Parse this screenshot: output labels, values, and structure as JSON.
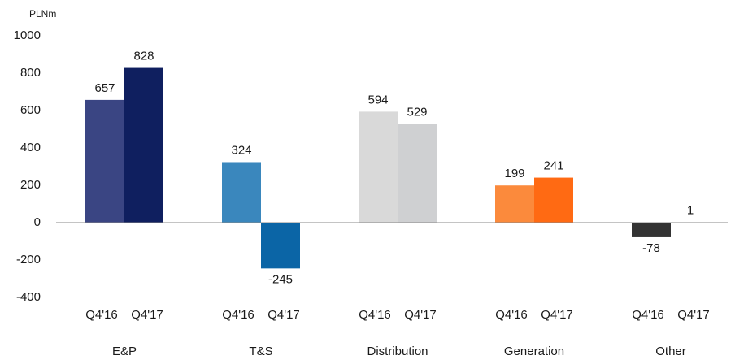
{
  "chart_data": {
    "type": "bar",
    "y_label": "PLNm",
    "categories": [
      "E&P",
      "T&S",
      "Distribution",
      "Generation",
      "Other"
    ],
    "series": [
      {
        "name": "Q4'16",
        "colors": [
          "#3a4583",
          "#3a87bd",
          "#d9d9d9",
          "#fb8a3c",
          "#333333"
        ],
        "values": [
          657,
          324,
          594,
          199,
          -78
        ]
      },
      {
        "name": "Q4'17",
        "colors": [
          "#0f1f5f",
          "#0b65a6",
          "#cfd0d2",
          "#ff6a13",
          "#333333"
        ],
        "values": [
          828,
          -245,
          529,
          241,
          1
        ]
      }
    ],
    "ylim": [
      -400,
      1000
    ],
    "yticks": [
      -400,
      -200,
      0,
      200,
      400,
      600,
      800,
      1000
    ],
    "grid": false
  }
}
